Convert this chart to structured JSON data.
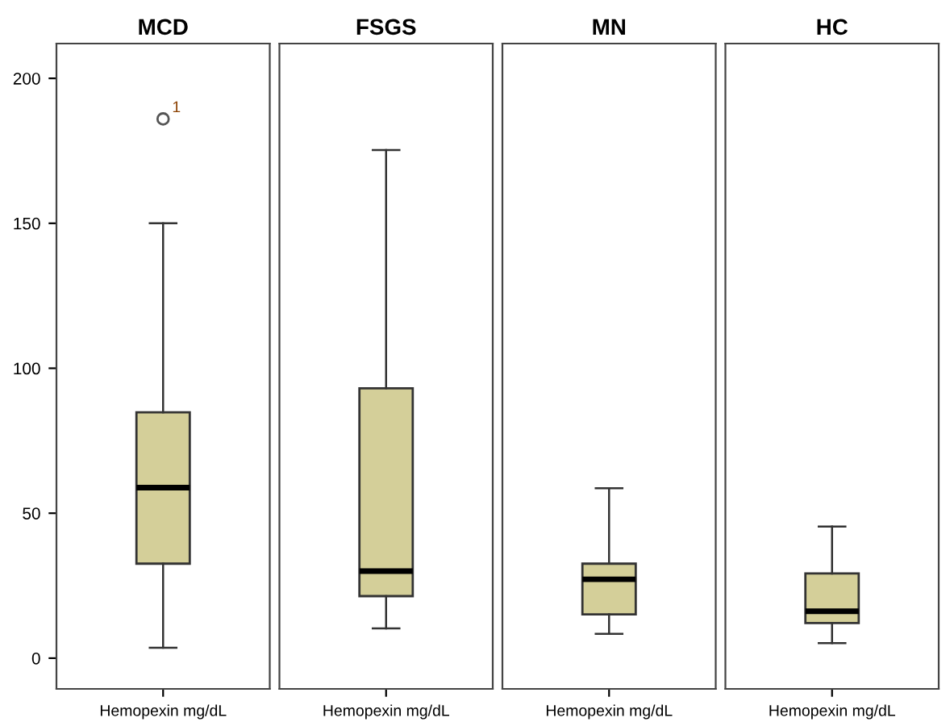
{
  "chart_data": [
    {
      "type": "box",
      "title": "MCD",
      "categories": [
        "Hemopexin mg/dL"
      ],
      "color": "#d4cf99",
      "boxes": [
        {
          "low": 3.6,
          "q1": 32.6,
          "median": 58.8,
          "q3": 84.8,
          "high": 150,
          "outliers": [
            186
          ]
        }
      ],
      "annotations": [
        "1"
      ],
      "ylim": [
        -10.6,
        212
      ],
      "yticks": [
        0,
        50,
        100,
        150,
        200
      ]
    },
    {
      "type": "box",
      "title": "FSGS",
      "categories": [
        "Hemopexin mg/dL"
      ],
      "color": "#d4cf99",
      "boxes": [
        {
          "low": 10.3,
          "q1": 21.4,
          "median": 30,
          "q3": 93.1,
          "high": 175.3
        }
      ],
      "ylim": [
        -10.6,
        212
      ],
      "tick_labels": "x"
    },
    {
      "type": "box",
      "title": "MN",
      "categories": [
        "Hemopexin mg/dL"
      ],
      "color": "#d4cf99",
      "boxes": [
        {
          "low": 8.4,
          "q1": 15.1,
          "median": 27.2,
          "q3": 32.6,
          "high": 58.6
        }
      ],
      "ylim": [
        -10.6,
        212
      ],
      "tick_labels": "x"
    },
    {
      "type": "box",
      "title": "HC",
      "categories": [
        "Hemopexin mg/dL"
      ],
      "color": "#d4cf99",
      "boxes": [
        {
          "low": 5.2,
          "q1": 12.1,
          "median": 16.2,
          "q3": 29.2,
          "high": 45.4
        }
      ],
      "ylim": [
        -10.6,
        212
      ],
      "tick_labels": "x"
    }
  ]
}
